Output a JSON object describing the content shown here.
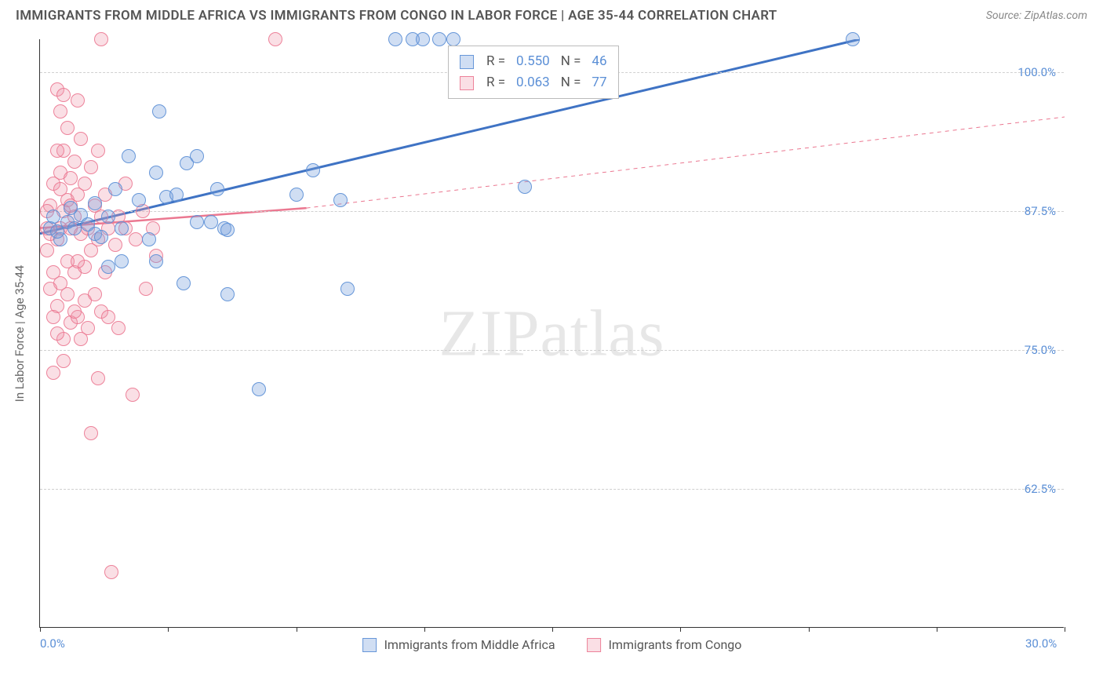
{
  "title": "IMMIGRANTS FROM MIDDLE AFRICA VS IMMIGRANTS FROM CONGO IN LABOR FORCE | AGE 35-44 CORRELATION CHART",
  "source": "Source: ZipAtlas.com",
  "watermark_a": "ZIP",
  "watermark_b": "atlas",
  "chart": {
    "type": "scatter",
    "background_color": "#ffffff",
    "grid_color": "#d0d0d0",
    "text_color": "#666666",
    "axis_color": "#333333",
    "label_color": "#5b8fd6",
    "y_axis_label": "In Labor Force | Age 35-44",
    "xlim": [
      0,
      30
    ],
    "ylim": [
      50,
      103
    ],
    "y_ticks": [
      62.5,
      75.0,
      87.5,
      100.0
    ],
    "y_tick_labels": [
      "62.5%",
      "75.0%",
      "87.5%",
      "100.0%"
    ],
    "x_ticks": [
      0,
      3.75,
      7.5,
      11.25,
      15,
      18.75,
      22.5,
      26.25,
      30
    ],
    "x_tick_labels_shown": {
      "0": "0.0%",
      "30": "30.0%"
    },
    "marker_size": 18,
    "series": {
      "blue": {
        "label": "Immigrants from Middle Africa",
        "color_fill": "rgba(120,160,220,0.35)",
        "color_stroke": "rgba(91,143,214,0.9)",
        "R": "0.550",
        "N": "46",
        "trend": {
          "x1": 0,
          "y1": 85.5,
          "x2": 24,
          "y2": 103,
          "width": 3,
          "dash": "none"
        },
        "points": [
          [
            0.3,
            86
          ],
          [
            0.4,
            87
          ],
          [
            0.6,
            85
          ],
          [
            0.8,
            86.5
          ],
          [
            1.0,
            86
          ],
          [
            1.2,
            87.2
          ],
          [
            1.4,
            86.3
          ],
          [
            1.6,
            88.2
          ],
          [
            1.6,
            85.5
          ],
          [
            2.0,
            87
          ],
          [
            2.2,
            89.5
          ],
          [
            2.4,
            86
          ],
          [
            2.4,
            83
          ],
          [
            2.6,
            92.5
          ],
          [
            2.9,
            88.5
          ],
          [
            3.2,
            85
          ],
          [
            3.4,
            91
          ],
          [
            3.4,
            83
          ],
          [
            3.5,
            96.5
          ],
          [
            3.7,
            88.8
          ],
          [
            4.0,
            89
          ],
          [
            4.2,
            81
          ],
          [
            4.3,
            91.8
          ],
          [
            4.6,
            86.5
          ],
          [
            4.6,
            92.5
          ],
          [
            5.0,
            86.5
          ],
          [
            5.2,
            89.5
          ],
          [
            5.4,
            86
          ],
          [
            5.5,
            80
          ],
          [
            5.5,
            85.8
          ],
          [
            6.4,
            71.5
          ],
          [
            7.5,
            89
          ],
          [
            8.0,
            91.2
          ],
          [
            8.8,
            88.5
          ],
          [
            9.0,
            80.5
          ],
          [
            10.4,
            103
          ],
          [
            10.9,
            103
          ],
          [
            11.2,
            103
          ],
          [
            11.7,
            103
          ],
          [
            12.1,
            103
          ],
          [
            14.2,
            89.7
          ],
          [
            23.8,
            103
          ],
          [
            2.0,
            82.5
          ],
          [
            1.8,
            85.2
          ],
          [
            0.9,
            87.8
          ],
          [
            0.5,
            85.7
          ]
        ]
      },
      "pink": {
        "label": "Immigrants from Congo",
        "color_fill": "rgba(240,150,170,0.30)",
        "color_stroke": "rgba(235,120,145,0.9)",
        "R": "0.063",
        "N": "77",
        "trend_solid": {
          "x1": 0,
          "y1": 86,
          "x2": 7.8,
          "y2": 87.8,
          "width": 2.5,
          "dash": "none"
        },
        "trend_dash": {
          "x1": 7.8,
          "y1": 87.8,
          "x2": 30,
          "y2": 96,
          "width": 1,
          "dash": "5,5"
        },
        "points": [
          [
            0.2,
            86
          ],
          [
            0.2,
            84
          ],
          [
            0.3,
            88
          ],
          [
            0.4,
            90
          ],
          [
            0.4,
            82
          ],
          [
            0.5,
            98.5
          ],
          [
            0.5,
            85
          ],
          [
            0.5,
            79
          ],
          [
            0.6,
            96.5
          ],
          [
            0.6,
            91
          ],
          [
            0.6,
            86
          ],
          [
            0.7,
            98
          ],
          [
            0.7,
            93
          ],
          [
            0.7,
            87.5
          ],
          [
            0.7,
            76
          ],
          [
            0.8,
            95
          ],
          [
            0.8,
            88.5
          ],
          [
            0.8,
            83
          ],
          [
            0.9,
            90.5
          ],
          [
            0.9,
            86
          ],
          [
            0.9,
            77.5
          ],
          [
            1.0,
            92
          ],
          [
            1.0,
            87
          ],
          [
            1.0,
            82
          ],
          [
            1.1,
            97.5
          ],
          [
            1.1,
            89
          ],
          [
            1.1,
            78
          ],
          [
            1.2,
            94
          ],
          [
            1.2,
            85.5
          ],
          [
            1.3,
            90
          ],
          [
            1.3,
            79.5
          ],
          [
            1.4,
            86
          ],
          [
            1.4,
            77
          ],
          [
            1.5,
            91.5
          ],
          [
            1.5,
            84
          ],
          [
            1.5,
            67.5
          ],
          [
            1.6,
            88
          ],
          [
            1.6,
            80
          ],
          [
            1.7,
            93
          ],
          [
            1.7,
            85
          ],
          [
            1.7,
            72.5
          ],
          [
            1.8,
            87
          ],
          [
            1.8,
            78.5
          ],
          [
            1.8,
            103
          ],
          [
            1.9,
            89
          ],
          [
            1.9,
            82
          ],
          [
            2.0,
            86
          ],
          [
            2.0,
            78
          ],
          [
            2.1,
            55
          ],
          [
            2.2,
            84.5
          ],
          [
            2.3,
            87
          ],
          [
            2.3,
            77
          ],
          [
            2.5,
            86
          ],
          [
            2.5,
            90
          ],
          [
            2.7,
            71
          ],
          [
            2.8,
            85
          ],
          [
            3.0,
            87.5
          ],
          [
            3.1,
            80.5
          ],
          [
            3.3,
            86
          ],
          [
            3.4,
            83.5
          ],
          [
            0.4,
            73
          ],
          [
            0.5,
            76.5
          ],
          [
            0.6,
            81
          ],
          [
            0.7,
            74
          ],
          [
            0.8,
            80
          ],
          [
            1.0,
            78.5
          ],
          [
            1.2,
            76
          ],
          [
            1.3,
            82.5
          ],
          [
            1.1,
            83
          ],
          [
            0.9,
            88
          ],
          [
            0.3,
            85.5
          ],
          [
            0.2,
            87.5
          ],
          [
            0.4,
            78
          ],
          [
            0.5,
            93
          ],
          [
            0.6,
            89.5
          ],
          [
            0.3,
            80.5
          ],
          [
            6.9,
            103
          ]
        ]
      }
    },
    "legend_box": {
      "r_label": "R =",
      "n_label": "N ="
    },
    "title_fontsize": 17,
    "label_fontsize": 15
  }
}
